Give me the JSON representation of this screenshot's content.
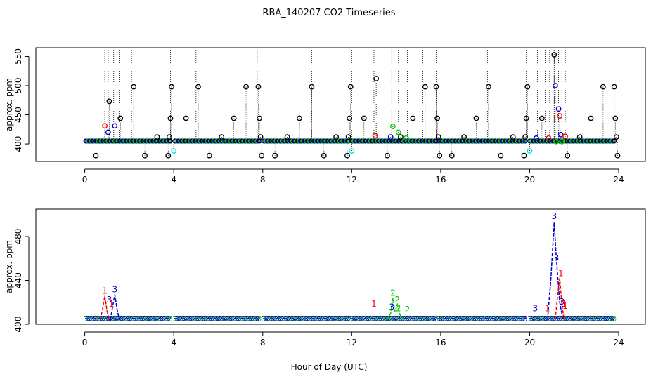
{
  "chart_data": {
    "title": "RBA_140207  CO2 Timeseries",
    "xlabel": "Hour of Day (UTC)",
    "colors": {
      "black": "#000000",
      "red": "#ff0000",
      "blue": "#0000cd",
      "green": "#00cd00",
      "cyan": "#00e5e5",
      "axis": "#000000"
    },
    "panels": [
      {
        "type": "scatter",
        "ylabel": "approx. ppm",
        "xlim": [
          -2.2,
          25.2
        ],
        "ylim": [
          370,
          565
        ],
        "xticks": [
          0,
          4,
          8,
          12,
          16,
          20,
          24
        ],
        "yticks": [
          400,
          450,
          500,
          550
        ],
        "baseline": {
          "x_segments": [
            [
              0.05,
              3.85
            ],
            [
              4.05,
              7.85
            ],
            [
              8.05,
              11.9
            ],
            [
              12.0,
              15.8
            ],
            [
              15.9,
              19.8
            ],
            [
              20.0,
              23.8
            ]
          ],
          "y": 405,
          "colors": [
            "blue",
            "black",
            "green"
          ]
        },
        "dotted_spikes_x": [
          0.9,
          1.05,
          1.3,
          1.55,
          2.1,
          3.85,
          5.0,
          7.2,
          7.75,
          10.2,
          12.0,
          13.0,
          13.8,
          13.9,
          14.1,
          14.5,
          15.2,
          15.8,
          18.1,
          19.85,
          20.35,
          20.7,
          20.9,
          21.1,
          21.3,
          21.45,
          21.6
        ],
        "points": [
          {
            "x": 0.5,
            "y": 380,
            "c": "black"
          },
          {
            "x": 0.9,
            "y": 431,
            "c": "red"
          },
          {
            "x": 1.05,
            "y": 420,
            "c": "blue"
          },
          {
            "x": 1.1,
            "y": 473,
            "c": "black"
          },
          {
            "x": 1.35,
            "y": 431,
            "c": "blue"
          },
          {
            "x": 1.6,
            "y": 444,
            "c": "black"
          },
          {
            "x": 2.2,
            "y": 498,
            "c": "black"
          },
          {
            "x": 2.7,
            "y": 380,
            "c": "black"
          },
          {
            "x": 3.25,
            "y": 412,
            "c": "black"
          },
          {
            "x": 3.75,
            "y": 380,
            "c": "black"
          },
          {
            "x": 3.8,
            "y": 412,
            "c": "black"
          },
          {
            "x": 3.85,
            "y": 444,
            "c": "black"
          },
          {
            "x": 3.9,
            "y": 498,
            "c": "black"
          },
          {
            "x": 4.0,
            "y": 388,
            "c": "cyan"
          },
          {
            "x": 4.55,
            "y": 444,
            "c": "black"
          },
          {
            "x": 5.1,
            "y": 498,
            "c": "black"
          },
          {
            "x": 5.6,
            "y": 380,
            "c": "black"
          },
          {
            "x": 6.15,
            "y": 412,
            "c": "black"
          },
          {
            "x": 6.7,
            "y": 444,
            "c": "black"
          },
          {
            "x": 7.25,
            "y": 498,
            "c": "black"
          },
          {
            "x": 7.8,
            "y": 498,
            "c": "black"
          },
          {
            "x": 7.85,
            "y": 444,
            "c": "black"
          },
          {
            "x": 7.9,
            "y": 412,
            "c": "black"
          },
          {
            "x": 7.95,
            "y": 380,
            "c": "black"
          },
          {
            "x": 8.55,
            "y": 380,
            "c": "black"
          },
          {
            "x": 9.1,
            "y": 412,
            "c": "black"
          },
          {
            "x": 9.65,
            "y": 444,
            "c": "black"
          },
          {
            "x": 10.2,
            "y": 498,
            "c": "black"
          },
          {
            "x": 10.75,
            "y": 380,
            "c": "black"
          },
          {
            "x": 11.3,
            "y": 412,
            "c": "black"
          },
          {
            "x": 11.8,
            "y": 380,
            "c": "black"
          },
          {
            "x": 11.85,
            "y": 412,
            "c": "black"
          },
          {
            "x": 11.9,
            "y": 444,
            "c": "black"
          },
          {
            "x": 11.95,
            "y": 498,
            "c": "black"
          },
          {
            "x": 12.0,
            "y": 388,
            "c": "cyan"
          },
          {
            "x": 12.55,
            "y": 444,
            "c": "black"
          },
          {
            "x": 13.05,
            "y": 414,
            "c": "red"
          },
          {
            "x": 13.1,
            "y": 512,
            "c": "black"
          },
          {
            "x": 13.6,
            "y": 380,
            "c": "black"
          },
          {
            "x": 13.75,
            "y": 412,
            "c": "blue"
          },
          {
            "x": 13.85,
            "y": 430,
            "c": "green"
          },
          {
            "x": 14.1,
            "y": 420,
            "c": "green"
          },
          {
            "x": 14.2,
            "y": 412,
            "c": "black"
          },
          {
            "x": 14.45,
            "y": 410,
            "c": "green"
          },
          {
            "x": 14.75,
            "y": 444,
            "c": "black"
          },
          {
            "x": 15.3,
            "y": 498,
            "c": "black"
          },
          {
            "x": 15.8,
            "y": 498,
            "c": "black"
          },
          {
            "x": 15.85,
            "y": 444,
            "c": "black"
          },
          {
            "x": 15.9,
            "y": 412,
            "c": "black"
          },
          {
            "x": 15.95,
            "y": 380,
            "c": "black"
          },
          {
            "x": 16.5,
            "y": 380,
            "c": "black"
          },
          {
            "x": 17.05,
            "y": 412,
            "c": "black"
          },
          {
            "x": 17.6,
            "y": 444,
            "c": "black"
          },
          {
            "x": 18.15,
            "y": 498,
            "c": "black"
          },
          {
            "x": 18.7,
            "y": 380,
            "c": "black"
          },
          {
            "x": 19.25,
            "y": 412,
            "c": "black"
          },
          {
            "x": 19.75,
            "y": 380,
            "c": "black"
          },
          {
            "x": 19.8,
            "y": 412,
            "c": "black"
          },
          {
            "x": 19.85,
            "y": 444,
            "c": "black"
          },
          {
            "x": 19.9,
            "y": 498,
            "c": "black"
          },
          {
            "x": 20.0,
            "y": 388,
            "c": "cyan"
          },
          {
            "x": 20.3,
            "y": 410,
            "c": "blue"
          },
          {
            "x": 20.55,
            "y": 444,
            "c": "black"
          },
          {
            "x": 20.85,
            "y": 410,
            "c": "red"
          },
          {
            "x": 21.1,
            "y": 553,
            "c": "black"
          },
          {
            "x": 21.15,
            "y": 500,
            "c": "blue"
          },
          {
            "x": 21.2,
            "y": 404,
            "c": "green"
          },
          {
            "x": 21.3,
            "y": 460,
            "c": "blue"
          },
          {
            "x": 21.35,
            "y": 448,
            "c": "red"
          },
          {
            "x": 21.4,
            "y": 416,
            "c": "blue"
          },
          {
            "x": 21.45,
            "y": 404,
            "c": "green"
          },
          {
            "x": 21.6,
            "y": 413,
            "c": "red"
          },
          {
            "x": 21.7,
            "y": 380,
            "c": "black"
          },
          {
            "x": 22.25,
            "y": 412,
            "c": "black"
          },
          {
            "x": 22.75,
            "y": 444,
            "c": "black"
          },
          {
            "x": 23.3,
            "y": 498,
            "c": "black"
          },
          {
            "x": 23.8,
            "y": 498,
            "c": "black"
          },
          {
            "x": 23.85,
            "y": 444,
            "c": "black"
          },
          {
            "x": 23.9,
            "y": 412,
            "c": "black"
          },
          {
            "x": 23.95,
            "y": 380,
            "c": "black"
          }
        ]
      },
      {
        "type": "line",
        "ylabel": "approx. ppm",
        "xlim": [
          -2.2,
          25.2
        ],
        "ylim": [
          400,
          505
        ],
        "xticks": [
          0,
          4,
          8,
          12,
          16,
          20,
          24
        ],
        "yticks": [
          400,
          440,
          480
        ],
        "baseline": {
          "x_segments": [
            [
              0.05,
              3.85
            ],
            [
              4.05,
              7.85
            ],
            [
              8.05,
              11.9
            ],
            [
              12.0,
              15.8
            ],
            [
              15.9,
              19.8
            ],
            [
              20.0,
              23.8
            ]
          ],
          "y": 405
        },
        "series": [
          {
            "color": "red",
            "x": [
              0.7,
              0.8,
              0.9,
              1.0,
              1.1
            ],
            "y": [
              404,
              414,
              426,
              412,
              404
            ]
          },
          {
            "color": "blue",
            "x": [
              1.15,
              1.25,
              1.35,
              1.45,
              1.55
            ],
            "y": [
              404,
              416,
              427,
              414,
              404
            ]
          },
          {
            "color": "green",
            "x": [
              13.6,
              13.75,
              13.85,
              13.95,
              14.05,
              14.15,
              14.25
            ],
            "y": [
              404,
              410,
              424,
              411,
              418,
              410,
              404
            ]
          },
          {
            "color": "blue",
            "x": [
              20.8,
              20.95,
              21.1,
              21.2,
              21.35,
              21.5
            ],
            "y": [
              404,
              440,
              493,
              460,
              420,
              404
            ]
          },
          {
            "color": "red",
            "x": [
              21.15,
              21.25,
              21.35,
              21.45,
              21.55
            ],
            "y": [
              404,
              425,
              442,
              418,
              404
            ]
          }
        ],
        "labels": [
          {
            "text": "1",
            "x": 0.9,
            "y": 428,
            "c": "red"
          },
          {
            "text": "3",
            "x": 1.35,
            "y": 429,
            "c": "blue"
          },
          {
            "text": "3",
            "x": 1.1,
            "y": 420,
            "c": "blue"
          },
          {
            "text": "1",
            "x": 1.2,
            "y": 416,
            "c": "red"
          },
          {
            "text": "1",
            "x": 13.0,
            "y": 416,
            "c": "red"
          },
          {
            "text": "2",
            "x": 13.85,
            "y": 426,
            "c": "green"
          },
          {
            "text": "3",
            "x": 13.8,
            "y": 413,
            "c": "blue"
          },
          {
            "text": "2",
            "x": 14.05,
            "y": 420,
            "c": "green"
          },
          {
            "text": "2",
            "x": 14.1,
            "y": 412,
            "c": "green"
          },
          {
            "text": "2",
            "x": 14.5,
            "y": 411,
            "c": "green"
          },
          {
            "text": "3",
            "x": 20.25,
            "y": 412,
            "c": "blue"
          },
          {
            "text": "1",
            "x": 20.8,
            "y": 412,
            "c": "red"
          },
          {
            "text": "3",
            "x": 21.1,
            "y": 496,
            "c": "blue"
          },
          {
            "text": "3",
            "x": 21.2,
            "y": 458,
            "c": "blue"
          },
          {
            "text": "1",
            "x": 21.4,
            "y": 444,
            "c": "red"
          },
          {
            "text": "3",
            "x": 21.45,
            "y": 418,
            "c": "blue"
          },
          {
            "text": "1",
            "x": 21.6,
            "y": 414,
            "c": "red"
          },
          {
            "text": "1",
            "x": 21.55,
            "y": 416,
            "c": "red"
          }
        ]
      }
    ]
  }
}
